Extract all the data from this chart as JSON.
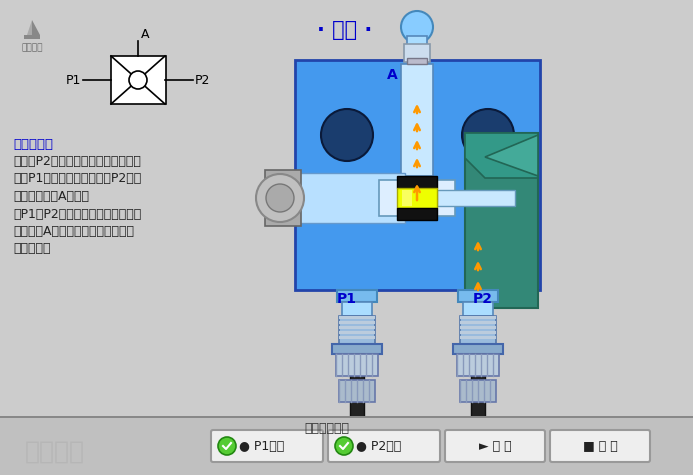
{
  "title": "· 梭阀 ·",
  "title_color": "#0000CC",
  "bg_color": "#CCCCCC",
  "main_blue": "#4499EE",
  "dark_blue": "#2244AA",
  "light_blue": "#99CCFF",
  "teal": "#338877",
  "orange_arrow": "#FF9900",
  "label_A": "A",
  "label_P1": "P1",
  "label_P2": "P2",
  "func_title": "功能说明：",
  "func_line1": "当通道P2进气时，将阀芯推向左边，",
  "func_line2": "通路P1被关闭，于是气体从P2进入",
  "func_line3": "阀体，从通道A流出。",
  "func_line4": "当P1、P2同时进气时，哪端气体的",
  "func_line5": "压力高，A就与哪端相通，另一端就",
  "func_line6": "自动关闭。",
  "bottom_label": "阀芯向左移动",
  "btn_p1": "● P1进气",
  "btn_p2": "● P2进气",
  "btn_play": "► 播 放",
  "btn_reset": "■ 复 位",
  "logo_bottom": "机工教育",
  "logo_top": "达米教育"
}
